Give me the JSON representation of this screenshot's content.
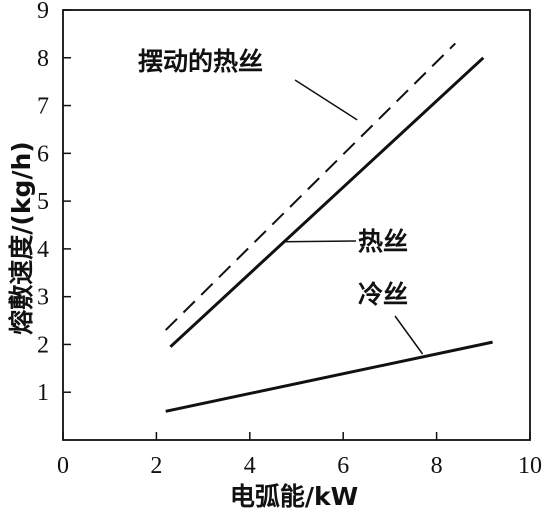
{
  "chart_data": {
    "type": "line",
    "xlabel": "电弧能/kW",
    "ylabel": "熔敷速度/(kg/h)",
    "xlim": [
      0,
      10
    ],
    "ylim": [
      0,
      9
    ],
    "x_ticks": [
      0,
      2,
      4,
      6,
      8,
      10
    ],
    "y_ticks": [
      1,
      2,
      3,
      4,
      5,
      6,
      7,
      8,
      9
    ],
    "grid": false,
    "series": [
      {
        "name": "摆动的热丝",
        "style": "dashed",
        "x": [
          2.2,
          8.4
        ],
        "y": [
          2.3,
          8.3
        ]
      },
      {
        "name": "热丝",
        "style": "solid",
        "x": [
          2.3,
          9.0
        ],
        "y": [
          1.95,
          8.0
        ]
      },
      {
        "name": "冷丝",
        "style": "solid",
        "x": [
          2.2,
          9.2
        ],
        "y": [
          0.6,
          2.05
        ]
      }
    ],
    "annotations": [
      {
        "text": "摆动的热丝",
        "series": 0,
        "point": [
          6.3,
          6.7
        ]
      },
      {
        "text": "热丝",
        "series": 1,
        "point": [
          4.7,
          4.15
        ]
      },
      {
        "text": "冷丝",
        "series": 2,
        "point": [
          7.7,
          1.8
        ]
      }
    ]
  },
  "colors": {
    "line": "#111111",
    "axis": "#111111"
  }
}
